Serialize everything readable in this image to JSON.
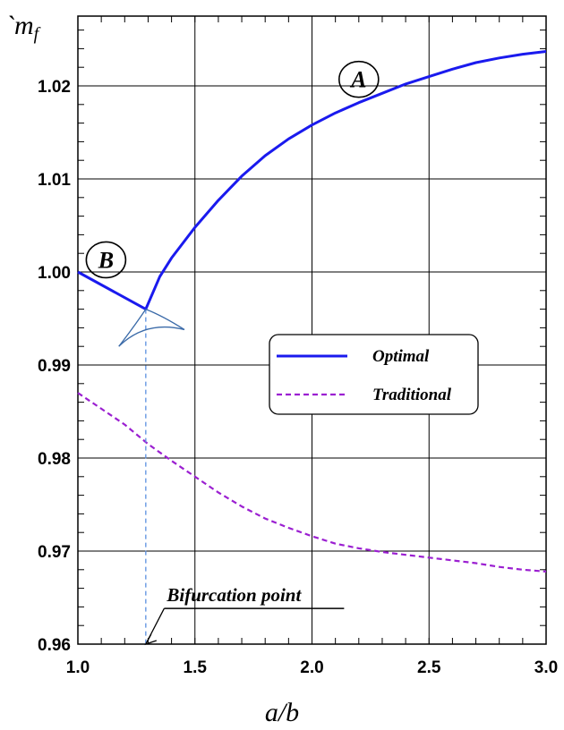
{
  "chart_data": {
    "type": "line",
    "xlabel": "a/b",
    "ylabel": "`m",
    "ylabel_sub": "f",
    "xlim": [
      1.0,
      3.0
    ],
    "ylim": [
      0.96,
      1.0275
    ],
    "x_ticks": [
      1.0,
      1.5,
      2.0,
      2.5,
      3.0
    ],
    "x_tick_labels": [
      "1.0",
      "1.5",
      "2.0",
      "2.5",
      "3.0"
    ],
    "y_ticks": [
      0.96,
      0.97,
      0.98,
      0.99,
      1.0,
      1.01,
      1.02
    ],
    "y_tick_labels": [
      "0.96",
      "0.97",
      "0.98",
      "0.99",
      "1.00",
      "1.01",
      "1.02"
    ],
    "grid": true,
    "legend_position": "right-middle",
    "series": [
      {
        "name": "Optimal",
        "color": "#1a1aee",
        "style": "solid",
        "x": [
          1.0,
          1.29,
          1.35,
          1.4,
          1.5,
          1.6,
          1.7,
          1.8,
          1.9,
          2.0,
          2.1,
          2.2,
          2.3,
          2.4,
          2.5,
          2.6,
          2.7,
          2.8,
          2.9,
          3.0
        ],
        "y": [
          1.0,
          0.996,
          0.9995,
          1.0015,
          1.0048,
          1.0077,
          1.0103,
          1.0125,
          1.0143,
          1.0158,
          1.0171,
          1.0182,
          1.0192,
          1.0202,
          1.021,
          1.0218,
          1.0225,
          1.023,
          1.0234,
          1.0237
        ]
      },
      {
        "name": "Traditional",
        "color": "#9b1fd1",
        "style": "dashed",
        "x": [
          1.0,
          1.1,
          1.2,
          1.3,
          1.4,
          1.5,
          1.6,
          1.7,
          1.8,
          1.9,
          2.0,
          2.1,
          2.2,
          2.3,
          2.4,
          2.5,
          2.6,
          2.7,
          2.8,
          2.9,
          3.0
        ],
        "y": [
          0.987,
          0.9853,
          0.9836,
          0.9815,
          0.9797,
          0.978,
          0.9763,
          0.9748,
          0.9735,
          0.9725,
          0.9716,
          0.9708,
          0.9703,
          0.9699,
          0.9696,
          0.9693,
          0.969,
          0.9687,
          0.9683,
          0.968,
          0.9678
        ]
      }
    ],
    "annotations": [
      {
        "text": "A",
        "x": 2.2,
        "y": 1.0207,
        "circled": true
      },
      {
        "text": "B",
        "x": 1.12,
        "y": 1.0013,
        "circled": true
      },
      {
        "text": "Bifurcation point",
        "x": 1.38,
        "y": 0.9646,
        "underlined": true
      }
    ],
    "bifurcation": {
      "x": 1.29,
      "y": 0.996,
      "color": "#5a8fe0",
      "cusp_color": "#3a6aa8",
      "cusp_left": [
        1.175,
        0.992
      ],
      "cusp_right": [
        1.455,
        0.9938
      ]
    }
  }
}
